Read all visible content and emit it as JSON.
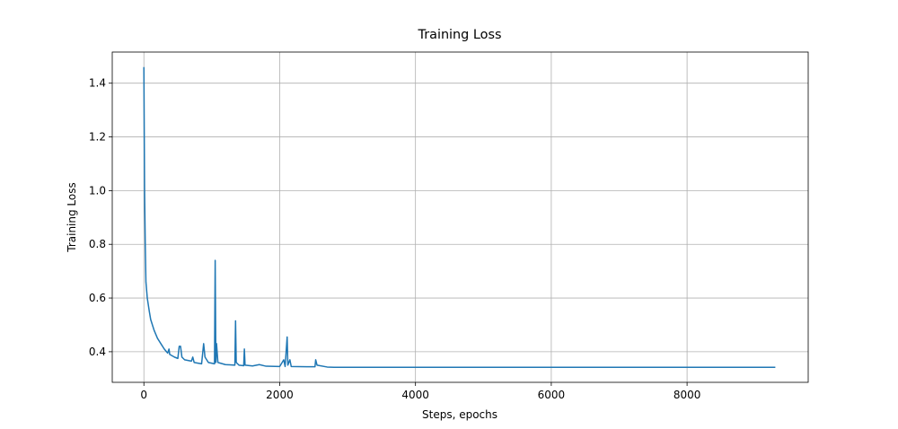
{
  "chart_data": {
    "type": "line",
    "title": "Training Loss",
    "x_label": "Steps, epochs",
    "y_label": "Training Loss",
    "x": [
      0,
      10,
      20,
      30,
      50,
      80,
      100,
      150,
      200,
      250,
      300,
      350,
      370,
      380,
      450,
      500,
      520,
      540,
      560,
      600,
      700,
      720,
      740,
      850,
      880,
      900,
      950,
      1040,
      1050,
      1060,
      1070,
      1090,
      1200,
      1340,
      1350,
      1360,
      1400,
      1470,
      1480,
      1490,
      1600,
      1700,
      1800,
      2000,
      2060,
      2080,
      2110,
      2120,
      2150,
      2170,
      2400,
      2520,
      2530,
      2550,
      2700,
      2800,
      4000,
      6000,
      8000,
      9300
    ],
    "values": [
      1.46,
      1.0,
      0.8,
      0.66,
      0.6,
      0.55,
      0.52,
      0.48,
      0.45,
      0.43,
      0.41,
      0.395,
      0.41,
      0.39,
      0.38,
      0.375,
      0.42,
      0.42,
      0.38,
      0.37,
      0.365,
      0.38,
      0.36,
      0.355,
      0.43,
      0.38,
      0.36,
      0.355,
      0.74,
      0.36,
      0.43,
      0.36,
      0.352,
      0.35,
      0.515,
      0.36,
      0.35,
      0.348,
      0.41,
      0.35,
      0.347,
      0.352,
      0.346,
      0.345,
      0.37,
      0.345,
      0.455,
      0.35,
      0.37,
      0.345,
      0.344,
      0.344,
      0.37,
      0.35,
      0.343,
      0.342,
      0.342,
      0.342,
      0.342,
      0.342
    ],
    "color": "#1f77b4",
    "xlim": [
      -466,
      9784
    ],
    "xticks": [
      0,
      2000,
      4000,
      6000,
      8000
    ],
    "ylim": [
      0.286,
      1.516
    ],
    "yticks": [
      0.4,
      0.6,
      0.8,
      {
        "value": 1,
        "label": "1.0"
      },
      1.2,
      1.4
    ],
    "grid": true
  }
}
